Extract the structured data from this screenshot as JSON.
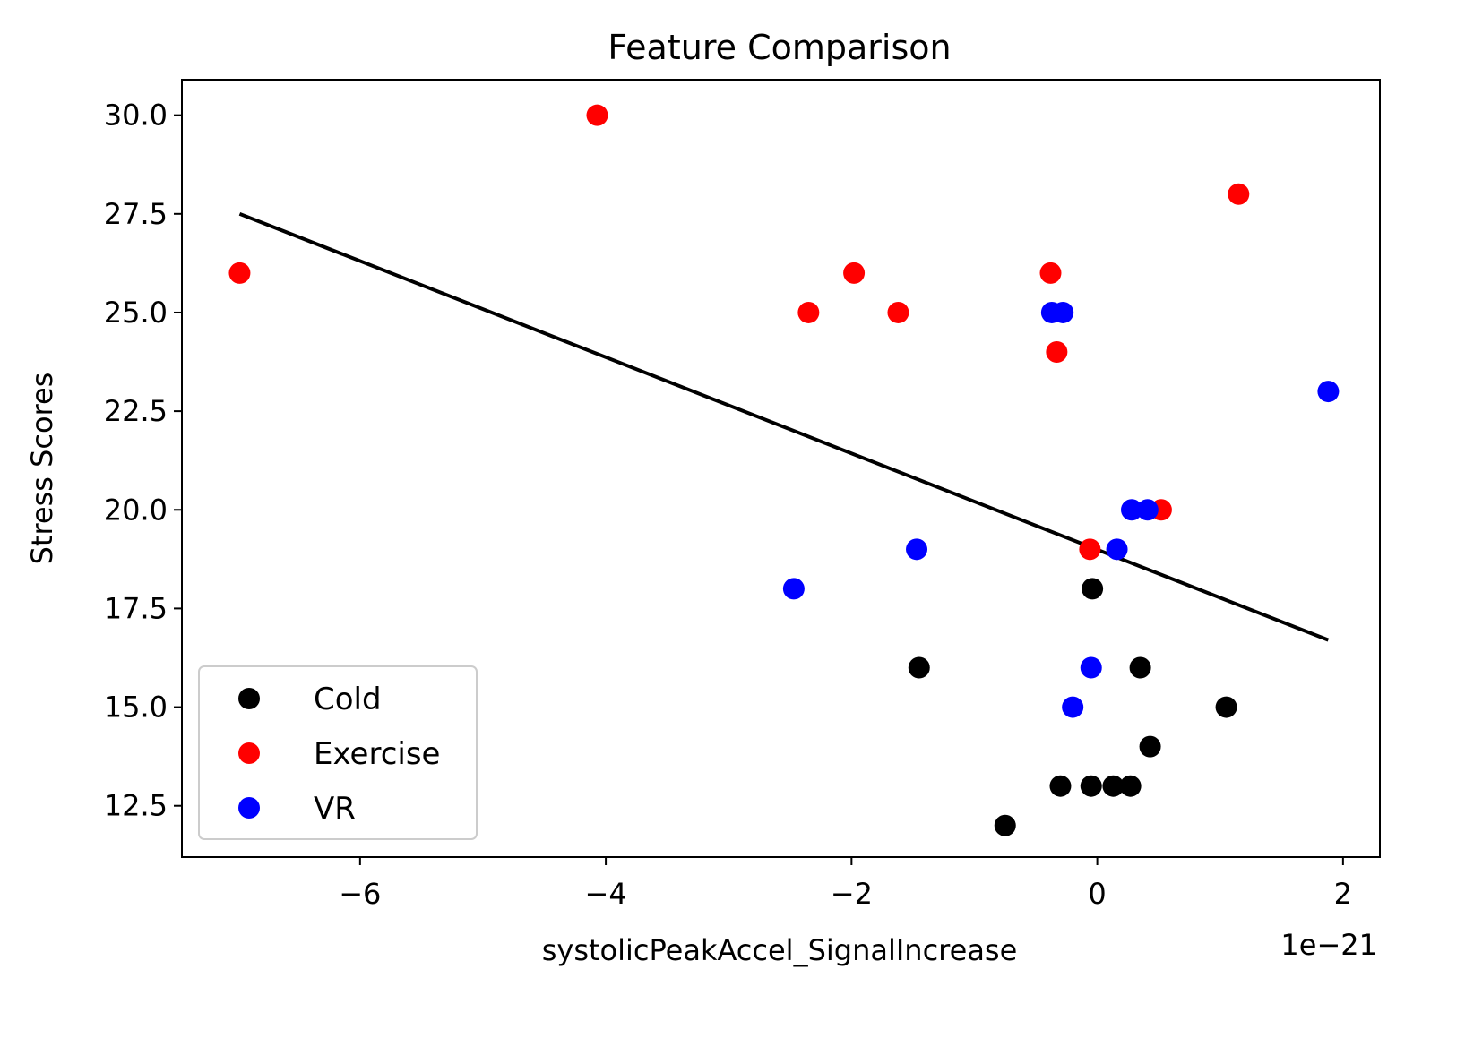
{
  "chart_data": {
    "type": "scatter",
    "title": "Feature Comparison",
    "xlabel": "systolicPeakAccel_SignalIncrease",
    "ylabel": "Stress Scores",
    "x_offset_label": "1e−21",
    "xlim": [
      -7.45,
      2.3
    ],
    "ylim": [
      11.2,
      30.9
    ],
    "x_ticks": [
      -6,
      -4,
      -2,
      0,
      2
    ],
    "x_tick_labels": [
      "−6",
      "−4",
      "−2",
      "0",
      "2"
    ],
    "y_ticks": [
      12.5,
      15.0,
      17.5,
      20.0,
      22.5,
      25.0,
      27.5,
      30.0
    ],
    "y_tick_labels": [
      "12.5",
      "15.0",
      "17.5",
      "20.0",
      "22.5",
      "25.0",
      "27.5",
      "30.0"
    ],
    "grid": false,
    "legend_position": "lower-left",
    "series": [
      {
        "name": "Cold",
        "color": "#000000",
        "points": [
          [
            -1.45,
            16
          ],
          [
            -0.04,
            18
          ],
          [
            0.35,
            16
          ],
          [
            1.05,
            15
          ],
          [
            0.43,
            14
          ],
          [
            -0.3,
            13
          ],
          [
            -0.05,
            13
          ],
          [
            0.13,
            13
          ],
          [
            0.27,
            13
          ],
          [
            -0.75,
            12
          ]
        ]
      },
      {
        "name": "Exercise",
        "color": "#ff0000",
        "points": [
          [
            -6.98,
            26
          ],
          [
            -4.07,
            30
          ],
          [
            1.15,
            28
          ],
          [
            -2.35,
            25
          ],
          [
            -1.98,
            26
          ],
          [
            -1.62,
            25
          ],
          [
            -0.38,
            26
          ],
          [
            -0.33,
            24
          ],
          [
            -0.06,
            19
          ],
          [
            0.52,
            20
          ]
        ]
      },
      {
        "name": "VR",
        "color": "#0000ff",
        "points": [
          [
            -0.37,
            25
          ],
          [
            -0.28,
            25
          ],
          [
            1.88,
            23
          ],
          [
            0.28,
            20
          ],
          [
            0.41,
            20
          ],
          [
            0.16,
            19
          ],
          [
            -1.47,
            19
          ],
          [
            -2.47,
            18
          ],
          [
            -0.05,
            16
          ],
          [
            -0.2,
            15
          ]
        ]
      }
    ],
    "trendline": {
      "color": "#000000",
      "x": [
        -6.98,
        1.88
      ],
      "y": [
        27.5,
        16.7
      ]
    }
  }
}
